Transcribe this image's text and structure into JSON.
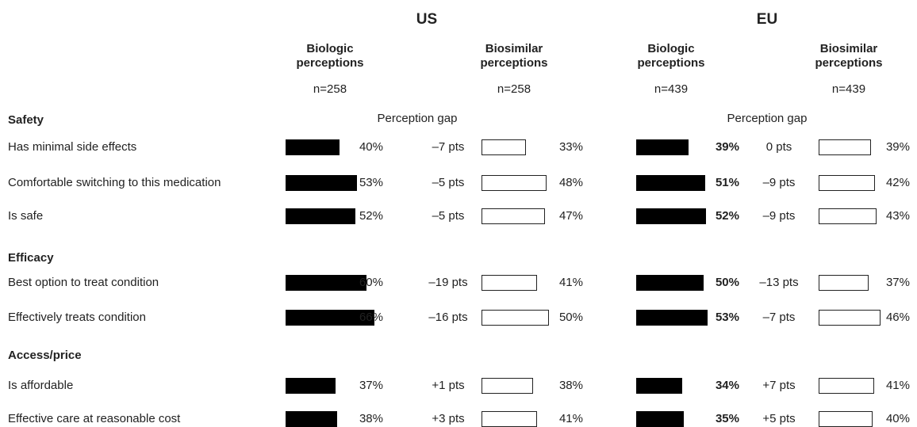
{
  "header": {
    "regions": [
      {
        "id": "us",
        "label": "US"
      },
      {
        "id": "eu",
        "label": "EU"
      }
    ],
    "groups": [
      {
        "region": "us",
        "title_line1": "Biologic",
        "title_line2": "perceptions",
        "n": "n=258"
      },
      {
        "region": "us",
        "title_line1": "Biosimilar",
        "title_line2": "perceptions",
        "n": "n=258"
      },
      {
        "region": "eu",
        "title_line1": "Biologic",
        "title_line2": "perceptions",
        "n": "n=439"
      },
      {
        "region": "eu",
        "title_line1": "Biosimilar",
        "title_line2": "perceptions",
        "n": "n=439"
      }
    ],
    "gap_label": "Perception gap"
  },
  "colors": {
    "biologic_bar": "#000000",
    "biosimilar_bar": "#ffffff",
    "text": "#222222"
  },
  "chart_data": {
    "type": "bar",
    "title": "",
    "value_unit": "%",
    "series": [
      {
        "name": "US Biologic perceptions"
      },
      {
        "name": "US Biosimilar perceptions"
      },
      {
        "name": "EU Biologic perceptions"
      },
      {
        "name": "EU Biosimilar perceptions"
      }
    ],
    "sections": [
      {
        "label": "Safety",
        "rows": [
          {
            "label": "Has minimal side effects",
            "us": {
              "biologic": 40,
              "biosimilar": 33,
              "gap": "–7 pts"
            },
            "eu": {
              "biologic": 39,
              "biosimilar": 39,
              "gap": "0 pts"
            }
          },
          {
            "label": "Comfortable switching to this medication",
            "us": {
              "biologic": 53,
              "biosimilar": 48,
              "gap": "–5 pts"
            },
            "eu": {
              "biologic": 51,
              "biosimilar": 42,
              "gap": "–9 pts"
            }
          },
          {
            "label": "Is safe",
            "us": {
              "biologic": 52,
              "biosimilar": 47,
              "gap": "–5 pts"
            },
            "eu": {
              "biologic": 52,
              "biosimilar": 43,
              "gap": "–9 pts"
            }
          }
        ]
      },
      {
        "label": "Efficacy",
        "rows": [
          {
            "label": "Best option to treat condition",
            "us": {
              "biologic": 60,
              "biosimilar": 41,
              "gap": "–19 pts"
            },
            "eu": {
              "biologic": 50,
              "biosimilar": 37,
              "gap": "–13 pts"
            }
          },
          {
            "label": "Effectively treats condition",
            "us": {
              "biologic": 66,
              "biosimilar": 50,
              "gap": "–16 pts"
            },
            "eu": {
              "biologic": 53,
              "biosimilar": 46,
              "gap": "–7 pts"
            }
          }
        ]
      },
      {
        "label": "Access/price",
        "rows": [
          {
            "label": "Is affordable",
            "us": {
              "biologic": 37,
              "biosimilar": 38,
              "gap": "+1 pts"
            },
            "eu": {
              "biologic": 34,
              "biosimilar": 41,
              "gap": "+7 pts"
            }
          },
          {
            "label": "Effective care at reasonable cost",
            "us": {
              "biologic": 38,
              "biosimilar": 41,
              "gap": "+3 pts"
            },
            "eu": {
              "biologic": 35,
              "biosimilar": 40,
              "gap": "+5 pts"
            }
          }
        ]
      }
    ]
  }
}
